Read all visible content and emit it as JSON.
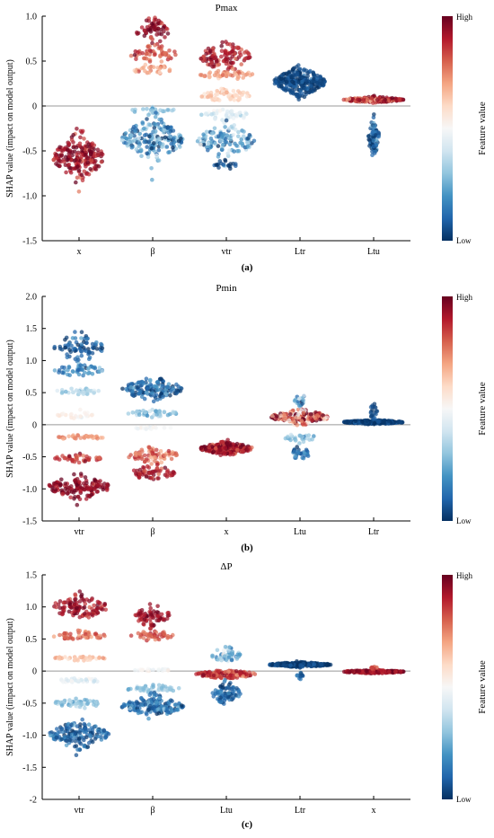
{
  "figure": {
    "captions": [
      "(a)",
      "(b)",
      "(c)"
    ],
    "ylabel": "SHAP value (impact on model output)",
    "colorbar": {
      "label": "Feature value",
      "high": "High",
      "low": "Low",
      "colors": [
        "#053061",
        "#2166ac",
        "#4393c3",
        "#92c5de",
        "#d1e5f0",
        "#f7f7f7",
        "#fddbc7",
        "#f4a582",
        "#d6604d",
        "#b2182b",
        "#67001f"
      ]
    }
  },
  "chart_data": [
    {
      "type": "scatter",
      "subtype": "shap-beeswarm",
      "title": "Pmax",
      "ylabel": "SHAP value (impact on model output)",
      "ylim": [
        -1.5,
        1.0
      ],
      "yticks": [
        "1.0",
        "0.5",
        "0",
        "-0.5",
        "-1.0",
        "-1.5"
      ],
      "ytick_values": [
        1.0,
        0.5,
        0,
        -0.5,
        -1.0,
        -1.5
      ],
      "categories": [
        "x",
        "β",
        "vtr",
        "Ltr",
        "Ltu"
      ],
      "features": [
        {
          "name": "x",
          "clusters": [
            {
              "center": -0.57,
              "spread": 0.2,
              "width": 0.85,
              "n": 200,
              "c": 0.93,
              "cvar": 0.07
            }
          ]
        },
        {
          "name": "β",
          "clusters": [
            {
              "center": 0.83,
              "spread": 0.12,
              "width": 0.55,
              "n": 60,
              "c": 0.95,
              "cvar": 0.05
            },
            {
              "center": 0.58,
              "spread": 0.1,
              "width": 0.75,
              "n": 55,
              "c": 0.82,
              "cvar": 0.06
            },
            {
              "center": 0.4,
              "spread": 0.06,
              "width": 0.6,
              "n": 30,
              "c": 0.7,
              "cvar": 0.05
            },
            {
              "center": -0.05,
              "spread": 0.03,
              "width": 0.75,
              "n": 25,
              "c": 0.3,
              "cvar": 0.04
            },
            {
              "center": -0.38,
              "spread": 0.2,
              "width": 1.0,
              "n": 200,
              "c": 0.2,
              "cvar": 0.12
            }
          ]
        },
        {
          "name": "vtr",
          "clusters": [
            {
              "center": 0.55,
              "spread": 0.14,
              "width": 0.85,
              "n": 110,
              "c": 0.9,
              "cvar": 0.06
            },
            {
              "center": 0.35,
              "spread": 0.05,
              "width": 0.85,
              "n": 45,
              "c": 0.72,
              "cvar": 0.05
            },
            {
              "center": 0.12,
              "spread": 0.06,
              "width": 0.85,
              "n": 55,
              "c": 0.62,
              "cvar": 0.04
            },
            {
              "center": -0.1,
              "spread": 0.05,
              "width": 0.85,
              "n": 40,
              "c": 0.42,
              "cvar": 0.05
            },
            {
              "center": -0.38,
              "spread": 0.16,
              "width": 0.95,
              "n": 120,
              "c": 0.22,
              "cvar": 0.1
            },
            {
              "center": -0.65,
              "spread": 0.06,
              "width": 0.4,
              "n": 20,
              "c": 0.05,
              "cvar": 0.04
            }
          ]
        },
        {
          "name": "Ltr",
          "clusters": [
            {
              "center": 0.27,
              "spread": 0.12,
              "width": 0.85,
              "n": 280,
              "c": 0.04,
              "cvar": 0.04
            }
          ]
        },
        {
          "name": "Ltu",
          "clusters": [
            {
              "center": 0.07,
              "spread": 0.025,
              "width": 1.0,
              "n": 180,
              "c": 0.88,
              "cvar": 0.1
            },
            {
              "center": -0.35,
              "spread": 0.17,
              "width": 0.18,
              "n": 70,
              "c": 0.1,
              "cvar": 0.07
            }
          ]
        }
      ]
    },
    {
      "type": "scatter",
      "subtype": "shap-beeswarm",
      "title": "Pmin",
      "ylabel": "SHAP value (impact on model output)",
      "ylim": [
        -1.5,
        2.0
      ],
      "yticks": [
        "2.0",
        "1.5",
        "1.0",
        "0.5",
        "0",
        "-0.5",
        "-1.0",
        "-1.5"
      ],
      "ytick_values": [
        2.0,
        1.5,
        1.0,
        0.5,
        0,
        -0.5,
        -1.0,
        -1.5
      ],
      "categories": [
        "vtr",
        "β",
        "x",
        "Ltu",
        "Ltr"
      ],
      "features": [
        {
          "name": "vtr",
          "clusters": [
            {
              "center": 1.2,
              "spread": 0.18,
              "width": 0.8,
              "n": 80,
              "c": 0.08,
              "cvar": 0.06
            },
            {
              "center": 0.85,
              "spread": 0.08,
              "width": 0.8,
              "n": 50,
              "c": 0.18,
              "cvar": 0.06
            },
            {
              "center": 0.52,
              "spread": 0.04,
              "width": 0.8,
              "n": 35,
              "c": 0.35,
              "cvar": 0.05
            },
            {
              "center": 0.15,
              "spread": 0.04,
              "width": 0.7,
              "n": 25,
              "c": 0.52,
              "cvar": 0.03
            },
            {
              "center": -0.2,
              "spread": 0.03,
              "width": 0.8,
              "n": 35,
              "c": 0.72,
              "cvar": 0.04
            },
            {
              "center": -0.52,
              "spread": 0.05,
              "width": 0.8,
              "n": 45,
              "c": 0.85,
              "cvar": 0.05
            },
            {
              "center": -0.97,
              "spread": 0.15,
              "width": 1.0,
              "n": 140,
              "c": 0.95,
              "cvar": 0.05
            }
          ]
        },
        {
          "name": "β",
          "clusters": [
            {
              "center": 0.55,
              "spread": 0.14,
              "width": 1.0,
              "n": 140,
              "c": 0.1,
              "cvar": 0.08
            },
            {
              "center": 0.18,
              "spread": 0.04,
              "width": 0.85,
              "n": 45,
              "c": 0.3,
              "cvar": 0.05
            },
            {
              "center": -0.05,
              "spread": 0.02,
              "width": 0.7,
              "n": 20,
              "c": 0.5,
              "cvar": 0.03
            },
            {
              "center": -0.48,
              "spread": 0.1,
              "width": 0.85,
              "n": 70,
              "c": 0.78,
              "cvar": 0.06
            },
            {
              "center": -0.75,
              "spread": 0.1,
              "width": 0.75,
              "n": 60,
              "c": 0.92,
              "cvar": 0.05
            }
          ]
        },
        {
          "name": "x",
          "clusters": [
            {
              "center": -0.37,
              "spread": 0.08,
              "width": 0.85,
              "n": 230,
              "c": 0.93,
              "cvar": 0.07
            }
          ]
        },
        {
          "name": "Ltu",
          "clusters": [
            {
              "center": 0.12,
              "spread": 0.09,
              "width": 0.95,
              "n": 180,
              "c": 0.8,
              "cvar": 0.18
            },
            {
              "center": 0.4,
              "spread": 0.08,
              "width": 0.2,
              "n": 20,
              "c": 0.2,
              "cvar": 0.1
            },
            {
              "center": -0.2,
              "spread": 0.06,
              "width": 0.5,
              "n": 30,
              "c": 0.3,
              "cvar": 0.06
            },
            {
              "center": -0.45,
              "spread": 0.1,
              "width": 0.3,
              "n": 30,
              "c": 0.12,
              "cvar": 0.06
            }
          ]
        },
        {
          "name": "Ltr",
          "clusters": [
            {
              "center": 0.04,
              "spread": 0.025,
              "width": 1.0,
              "n": 260,
              "c": 0.03,
              "cvar": 0.03
            },
            {
              "center": 0.2,
              "spread": 0.1,
              "width": 0.15,
              "n": 20,
              "c": 0.05,
              "cvar": 0.03
            }
          ]
        }
      ]
    },
    {
      "type": "scatter",
      "subtype": "shap-beeswarm",
      "title": "ΔP",
      "ylabel": "SHAP value (impact on model output)",
      "ylim": [
        -2.0,
        1.5
      ],
      "yticks": [
        "1.5",
        "1.0",
        "0.5",
        "0",
        "-0.5",
        "-1.0",
        "-1.5",
        "-2"
      ],
      "ytick_values": [
        1.5,
        1.0,
        0.5,
        0,
        -0.5,
        -1.0,
        -1.5,
        -2.0
      ],
      "categories": [
        "vtr",
        "β",
        "Ltu",
        "Ltr",
        "x"
      ],
      "features": [
        {
          "name": "vtr",
          "clusters": [
            {
              "center": 1.0,
              "spread": 0.15,
              "width": 0.95,
              "n": 110,
              "c": 0.93,
              "cvar": 0.05
            },
            {
              "center": 0.55,
              "spread": 0.06,
              "width": 0.9,
              "n": 50,
              "c": 0.78,
              "cvar": 0.05
            },
            {
              "center": 0.2,
              "spread": 0.03,
              "width": 0.85,
              "n": 35,
              "c": 0.65,
              "cvar": 0.04
            },
            {
              "center": -0.15,
              "spread": 0.03,
              "width": 0.8,
              "n": 30,
              "c": 0.45,
              "cvar": 0.04
            },
            {
              "center": -0.5,
              "spread": 0.06,
              "width": 0.9,
              "n": 50,
              "c": 0.3,
              "cvar": 0.05
            },
            {
              "center": -1.0,
              "spread": 0.17,
              "width": 1.0,
              "n": 150,
              "c": 0.1,
              "cvar": 0.07
            }
          ]
        },
        {
          "name": "β",
          "clusters": [
            {
              "center": 0.85,
              "spread": 0.14,
              "width": 0.6,
              "n": 70,
              "c": 0.93,
              "cvar": 0.05
            },
            {
              "center": 0.55,
              "spread": 0.07,
              "width": 0.7,
              "n": 45,
              "c": 0.8,
              "cvar": 0.05
            },
            {
              "center": 0.02,
              "spread": 0.02,
              "width": 0.7,
              "n": 20,
              "c": 0.48,
              "cvar": 0.04
            },
            {
              "center": -0.28,
              "spread": 0.05,
              "width": 0.9,
              "n": 55,
              "c": 0.3,
              "cvar": 0.05
            },
            {
              "center": -0.55,
              "spread": 0.13,
              "width": 1.0,
              "n": 160,
              "c": 0.12,
              "cvar": 0.07
            }
          ]
        },
        {
          "name": "Ltu",
          "clusters": [
            {
              "center": -0.05,
              "spread": 0.05,
              "width": 1.0,
              "n": 160,
              "c": 0.85,
              "cvar": 0.08
            },
            {
              "center": 0.25,
              "spread": 0.1,
              "width": 0.5,
              "n": 60,
              "c": 0.3,
              "cvar": 0.1
            },
            {
              "center": -0.35,
              "spread": 0.15,
              "width": 0.45,
              "n": 80,
              "c": 0.1,
              "cvar": 0.07
            }
          ]
        },
        {
          "name": "Ltr",
          "clusters": [
            {
              "center": 0.1,
              "spread": 0.03,
              "width": 1.0,
              "n": 260,
              "c": 0.03,
              "cvar": 0.03
            },
            {
              "center": -0.08,
              "spread": 0.05,
              "width": 0.1,
              "n": 15,
              "c": 0.1,
              "cvar": 0.04
            }
          ]
        },
        {
          "name": "x",
          "clusters": [
            {
              "center": -0.01,
              "spread": 0.02,
              "width": 1.0,
              "n": 220,
              "c": 0.93,
              "cvar": 0.05
            },
            {
              "center": 0.05,
              "spread": 0.02,
              "width": 0.12,
              "n": 15,
              "c": 0.85,
              "cvar": 0.05
            }
          ]
        }
      ]
    }
  ]
}
